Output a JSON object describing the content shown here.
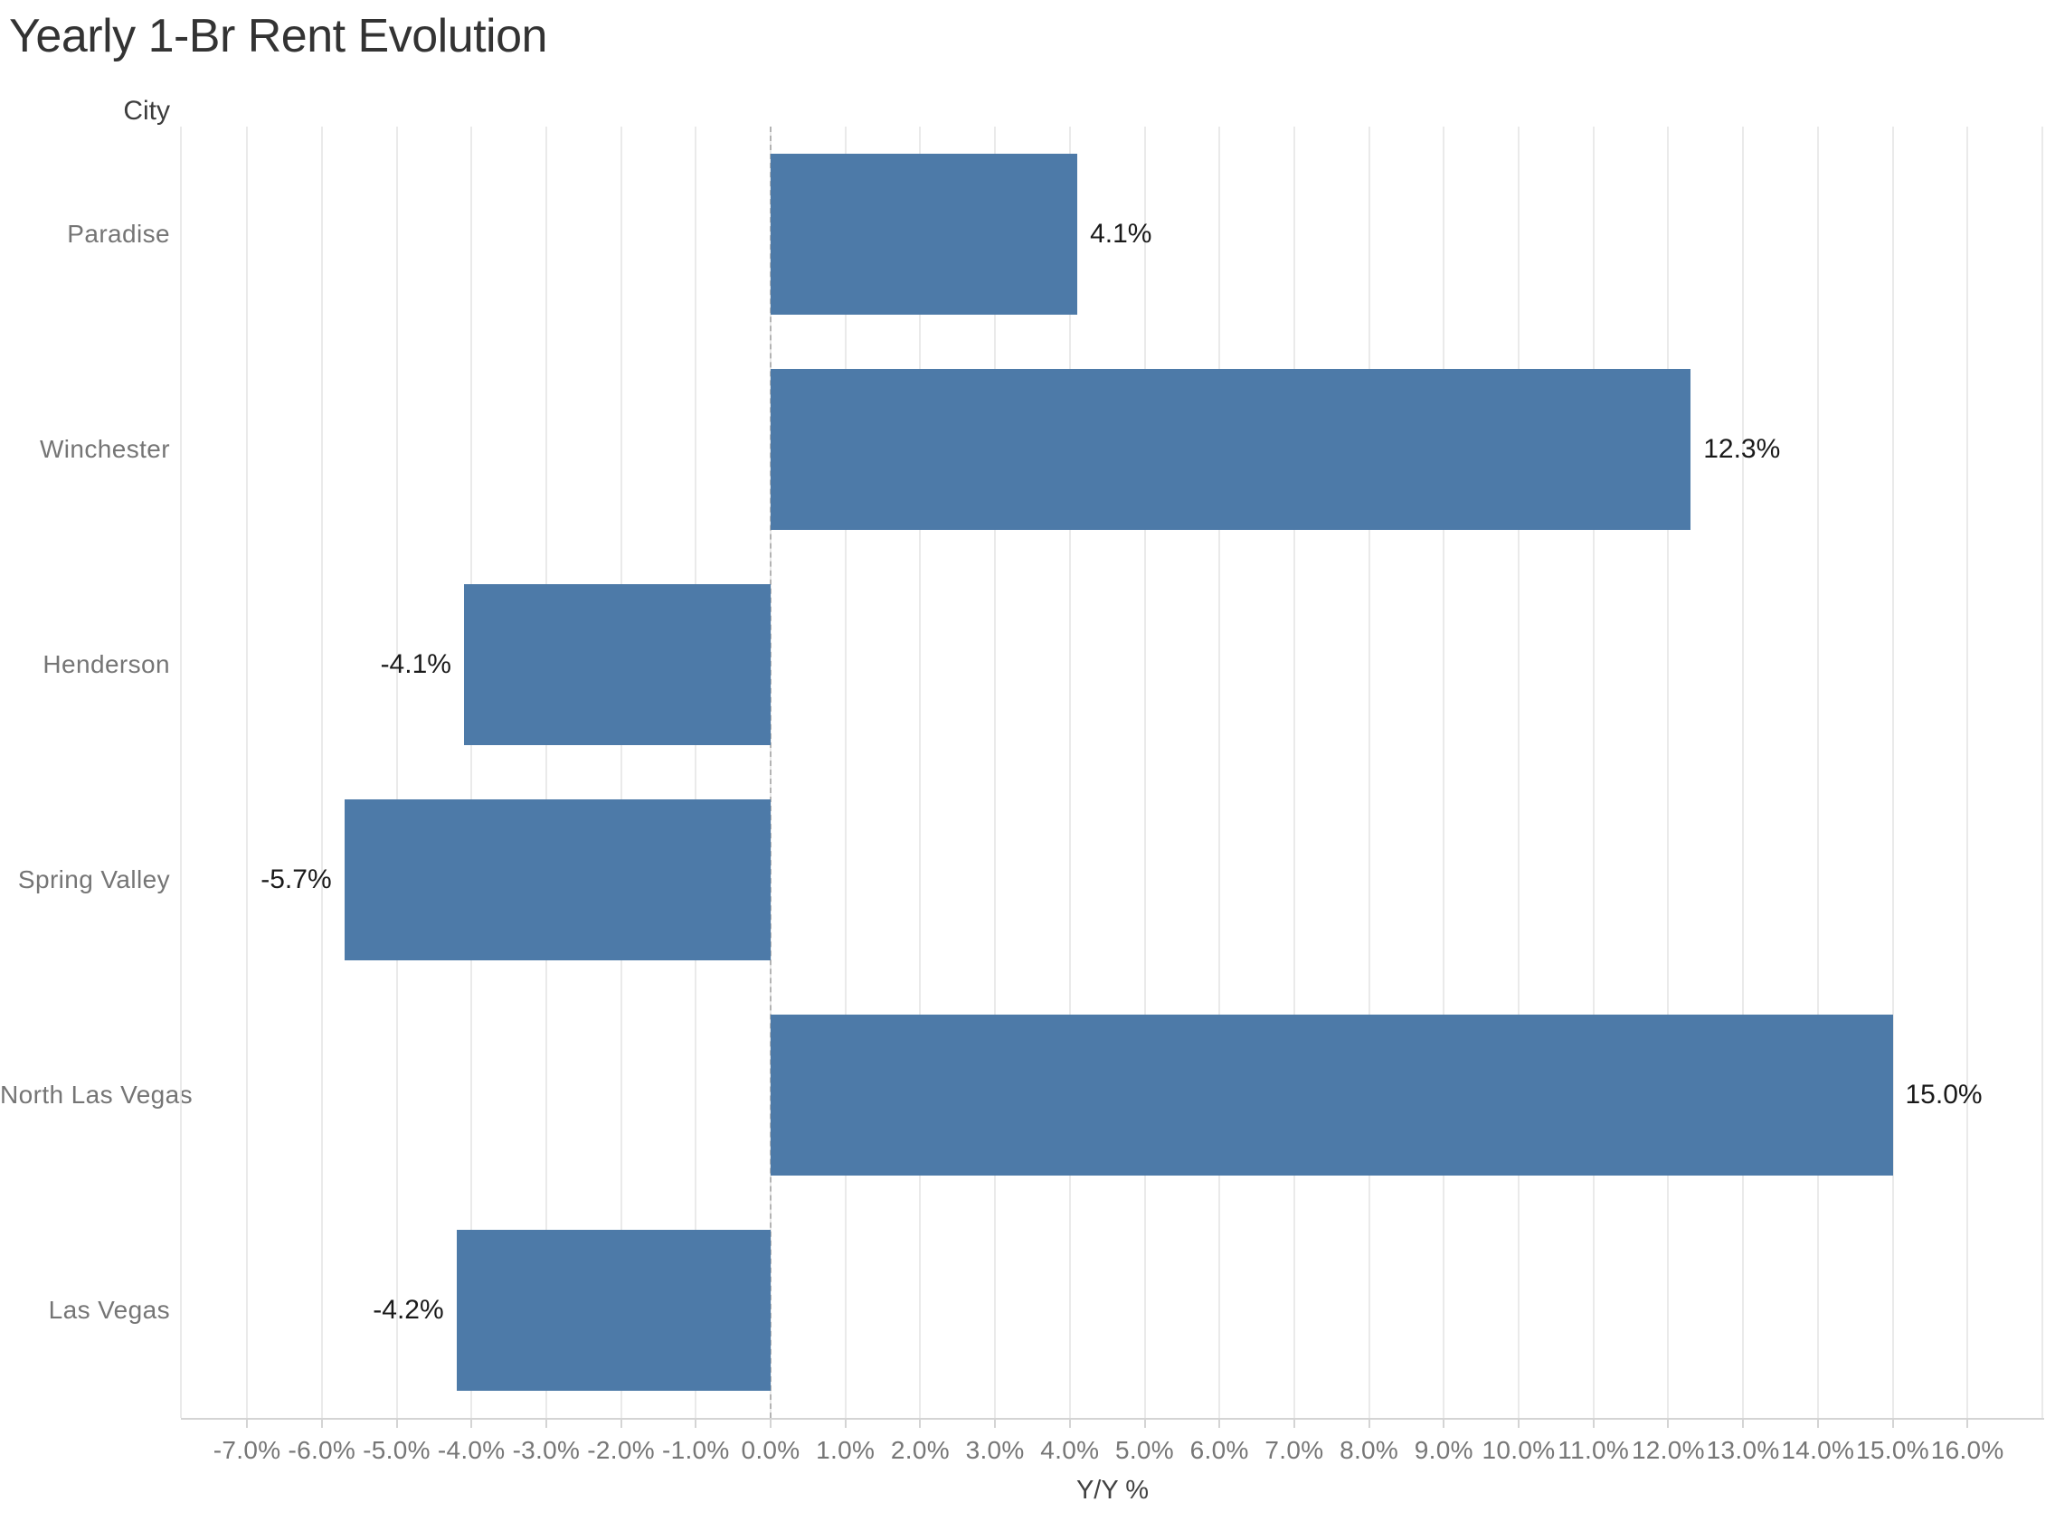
{
  "chart_data": {
    "type": "bar",
    "orientation": "horizontal",
    "title": "Yearly 1-Br Rent Evolution",
    "category_axis_label": "City",
    "value_axis_label": "Y/Y %",
    "categories": [
      "Paradise",
      "Winchester",
      "Henderson",
      "Spring Valley",
      "North Las Vegas",
      "Las Vegas"
    ],
    "values": [
      4.1,
      12.3,
      -4.1,
      -5.7,
      15.0,
      -4.2
    ],
    "value_labels": [
      "4.1%",
      "12.3%",
      "-4.1%",
      "-5.7%",
      "15.0%",
      "-4.2%"
    ],
    "x_tick_values": [
      -7,
      -6,
      -5,
      -4,
      -3,
      -2,
      -1,
      0,
      1,
      2,
      3,
      4,
      5,
      6,
      7,
      8,
      9,
      10,
      11,
      12,
      13,
      14,
      15,
      16
    ],
    "x_tick_labels": [
      "-7.0%",
      "-6.0%",
      "-5.0%",
      "-4.0%",
      "-3.0%",
      "-2.0%",
      "-1.0%",
      "0.0%",
      "1.0%",
      "2.0%",
      "3.0%",
      "4.0%",
      "5.0%",
      "6.0%",
      "7.0%",
      "8.0%",
      "9.0%",
      "10.0%",
      "11.0%",
      "12.0%",
      "13.0%",
      "14.0%",
      "15.0%",
      "16.0%"
    ],
    "xlim": [
      -7.9,
      17.0
    ],
    "grid": true,
    "zero_line": true,
    "legend": "none",
    "bar_color": "#4d7aa8",
    "gridline_color": "#eaeaea",
    "axis_line_color": "#d4d4d4",
    "zero_line_color": "#b3b3b3",
    "title_color": "#333333",
    "label_color": "#757575",
    "value_label_color": "#1a1a1a"
  }
}
